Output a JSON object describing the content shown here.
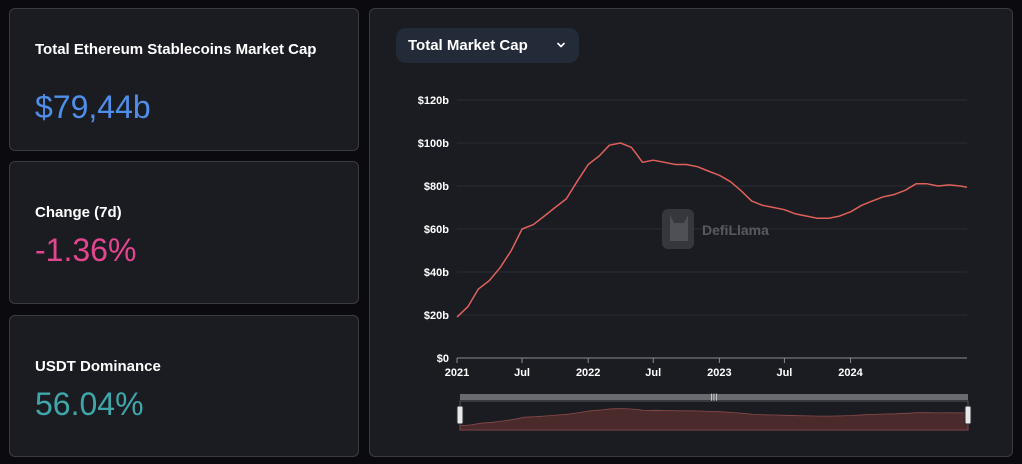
{
  "stats": {
    "total": {
      "label": "Total Ethereum Stablecoins Market Cap",
      "value": "$79,44b",
      "color": "#4f8fea"
    },
    "change": {
      "label": "Change (7d)",
      "value": "-1.36%",
      "color": "#e3458f"
    },
    "dominance": {
      "label": "USDT Dominance",
      "value": "56.04%",
      "color": "#3fa7a9"
    }
  },
  "chart": {
    "selector_label": "Total Market Cap",
    "watermark": "DefiLlama",
    "icons": {
      "dropdown": "chevron-down-icon",
      "watermark": "llama-logo-icon"
    }
  },
  "chart_data": {
    "type": "line",
    "title": "",
    "xlabel": "",
    "ylabel": "",
    "line_color": "#e0605a",
    "grid": true,
    "ylim": [
      0,
      120
    ],
    "y_unit": "billion USD",
    "y_ticks": [
      {
        "value": 0,
        "label": "$0"
      },
      {
        "value": 20,
        "label": "$20b"
      },
      {
        "value": 40,
        "label": "$40b"
      },
      {
        "value": 60,
        "label": "$60b"
      },
      {
        "value": 80,
        "label": "$80b"
      },
      {
        "value": 100,
        "label": "$100b"
      },
      {
        "value": 120,
        "label": "$120b"
      }
    ],
    "xlim": [
      "2021-01-01",
      "2024-11-20"
    ],
    "x_ticks": [
      {
        "date": "2021-01-01",
        "label": "2021",
        "bold": true
      },
      {
        "date": "2021-07-01",
        "label": "Jul",
        "bold": false
      },
      {
        "date": "2022-01-01",
        "label": "2022",
        "bold": true
      },
      {
        "date": "2022-07-01",
        "label": "Jul",
        "bold": false
      },
      {
        "date": "2023-01-01",
        "label": "2023",
        "bold": true
      },
      {
        "date": "2023-07-01",
        "label": "Jul",
        "bold": false
      },
      {
        "date": "2024-01-01",
        "label": "2024",
        "bold": true
      }
    ],
    "series": [
      {
        "x": [
          "2021-01-01",
          "2021-02-01",
          "2021-03-01",
          "2021-04-01",
          "2021-05-01",
          "2021-06-01",
          "2021-07-01",
          "2021-08-01",
          "2021-09-01",
          "2021-10-01",
          "2021-11-01",
          "2021-12-01",
          "2022-01-01",
          "2022-02-01",
          "2022-03-01",
          "2022-04-01",
          "2022-05-01",
          "2022-05-15",
          "2022-06-01",
          "2022-07-01",
          "2022-08-01",
          "2022-09-01",
          "2022-10-01",
          "2022-11-01",
          "2022-12-01",
          "2023-01-01",
          "2023-02-01",
          "2023-03-01",
          "2023-04-01",
          "2023-05-01",
          "2023-06-01",
          "2023-07-01",
          "2023-08-01",
          "2023-09-01",
          "2023-10-01",
          "2023-11-01",
          "2023-12-01",
          "2024-01-01",
          "2024-02-01",
          "2024-03-01",
          "2024-04-01",
          "2024-05-01",
          "2024-06-01",
          "2024-07-01",
          "2024-08-01",
          "2024-09-01",
          "2024-10-01",
          "2024-11-01",
          "2024-11-20"
        ],
        "y": [
          19,
          24,
          32,
          36,
          42,
          50,
          60,
          62,
          66,
          70,
          74,
          82,
          90,
          94,
          99,
          100,
          98,
          95,
          91,
          92,
          91,
          90,
          90,
          89,
          87,
          85,
          82,
          78,
          73,
          71,
          70,
          69,
          67,
          66,
          65,
          65,
          66,
          68,
          71,
          73,
          75,
          76,
          78,
          81,
          81,
          80,
          80.5,
          80,
          79.4
        ]
      }
    ]
  }
}
